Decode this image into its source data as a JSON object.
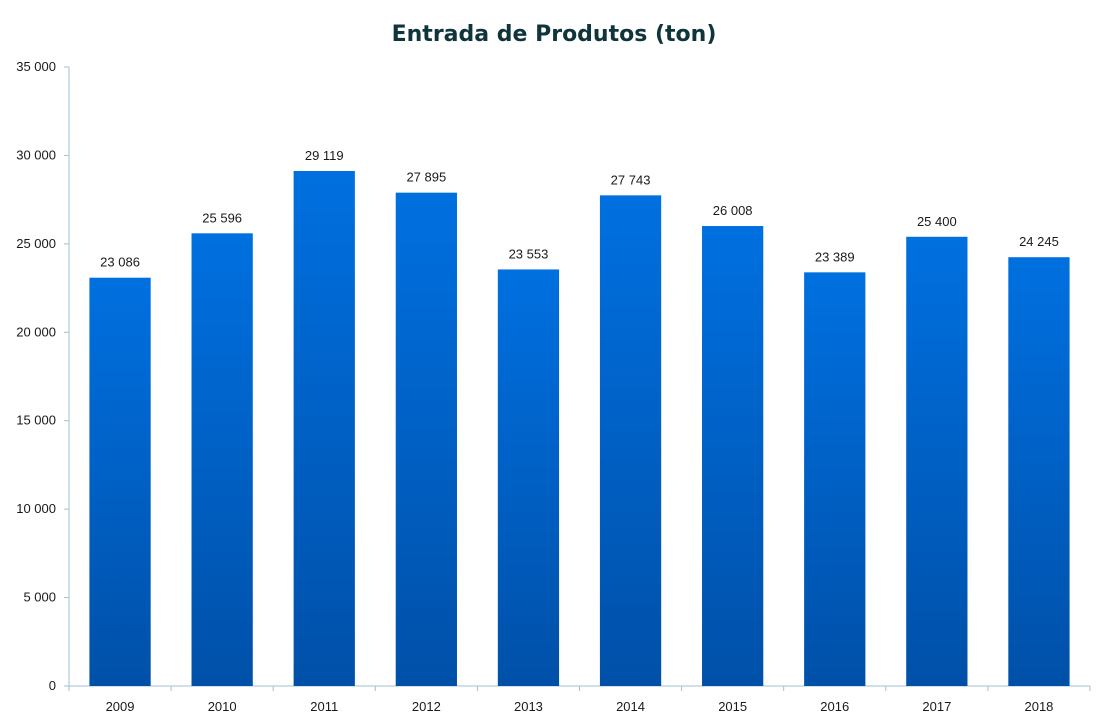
{
  "chart_data": {
    "type": "bar",
    "title": "Entrada de Produtos (ton)",
    "xlabel": "",
    "ylabel": "",
    "categories": [
      "2009",
      "2010",
      "2011",
      "2012",
      "2013",
      "2014",
      "2015",
      "2016",
      "2017",
      "2018"
    ],
    "values": [
      23086,
      25596,
      29119,
      27895,
      23553,
      27743,
      26008,
      23389,
      25400,
      24245
    ],
    "value_labels": [
      "23 086",
      "25 596",
      "29 119",
      "27 895",
      "23 553",
      "27 743",
      "26 008",
      "23 389",
      "25 400",
      "24 245"
    ],
    "ylim": [
      0,
      35000
    ],
    "yticks": [
      0,
      5000,
      10000,
      15000,
      20000,
      25000,
      30000,
      35000
    ],
    "ytick_labels": [
      "0",
      "5 000",
      "10 000",
      "15 000",
      "20 000",
      "25 000",
      "30 000",
      "35 000"
    ],
    "grid": false,
    "legend": "none",
    "colors": {
      "bar_top": "#0070e0",
      "bar_bottom": "#0050a8",
      "axis": "#9cc3d6",
      "title": "#10343c"
    }
  }
}
